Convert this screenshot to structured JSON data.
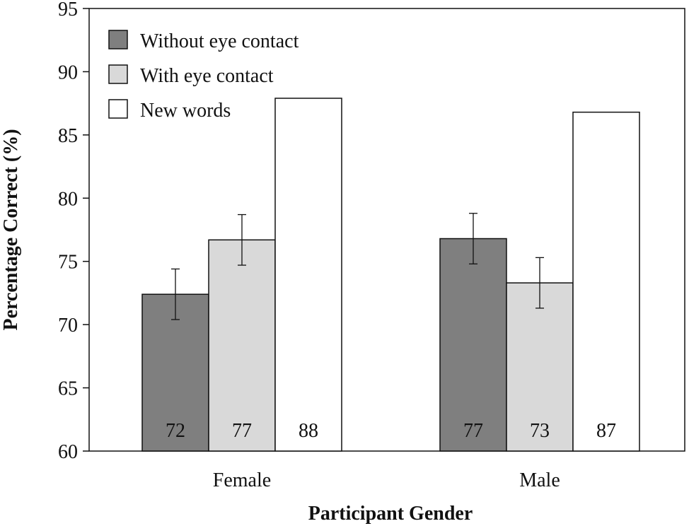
{
  "chart_data": {
    "type": "bar",
    "categories": [
      "Female",
      "Male"
    ],
    "series": [
      {
        "name": "Without eye contact",
        "values": [
          72.4,
          76.8
        ],
        "errors": [
          2.0,
          2.0
        ],
        "labels": [
          "72",
          "77"
        ],
        "color": "#7f7f7f"
      },
      {
        "name": "With eye contact",
        "values": [
          76.7,
          73.3
        ],
        "errors": [
          2.0,
          2.0
        ],
        "labels": [
          "77",
          "73"
        ],
        "color": "#d9d9d9"
      },
      {
        "name": "New words",
        "values": [
          87.9,
          86.8
        ],
        "errors": [
          null,
          null
        ],
        "labels": [
          "88",
          "87"
        ],
        "color": "#ffffff"
      }
    ],
    "xlabel": "Participant Gender",
    "ylabel": "Percentage Correct (%)",
    "ylim": [
      60,
      95
    ],
    "yticks": [
      60,
      65,
      70,
      75,
      80,
      85,
      90,
      95
    ],
    "grid": false,
    "legend_position": "top-left"
  }
}
